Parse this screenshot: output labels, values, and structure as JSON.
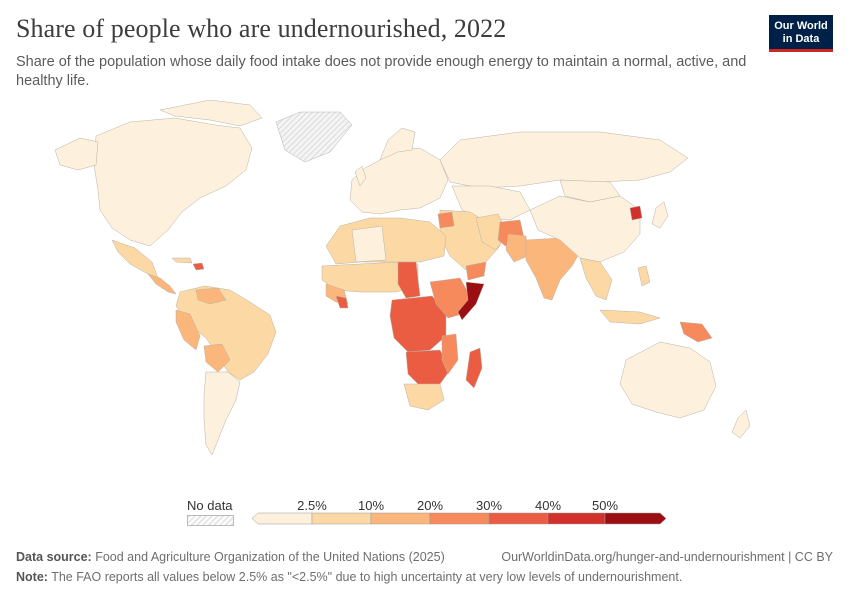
{
  "header": {
    "title": "Share of people who are undernourished, 2022",
    "subtitle": "Share of the population whose daily food intake does not provide enough energy to maintain a normal, active, and healthy life."
  },
  "logo": {
    "line1": "Our World",
    "line2": "in Data"
  },
  "legend": {
    "no_data_label": "No data",
    "ticks": [
      "2.5%",
      "10%",
      "20%",
      "30%",
      "40%",
      "50%"
    ],
    "bins": [
      "#fdf0dc",
      "#fcd9a4",
      "#fbb67c",
      "#f68a5c",
      "#ea5d42",
      "#d0312a",
      "#9b0f12"
    ]
  },
  "footer": {
    "source_label": "Data source:",
    "source_text": "Food and Agriculture Organization of the United Nations (2025)",
    "url_text": "OurWorldinData.org/hunger-and-undernourishment | CC BY",
    "note_label": "Note:",
    "note_text": "The FAO reports all values below 2.5% as \"<2.5%\" due to high uncertainty at very low levels of undernourishment."
  },
  "colors": {
    "border": "#b9b2a6",
    "no_data_fill": "#e8e8e8"
  }
}
